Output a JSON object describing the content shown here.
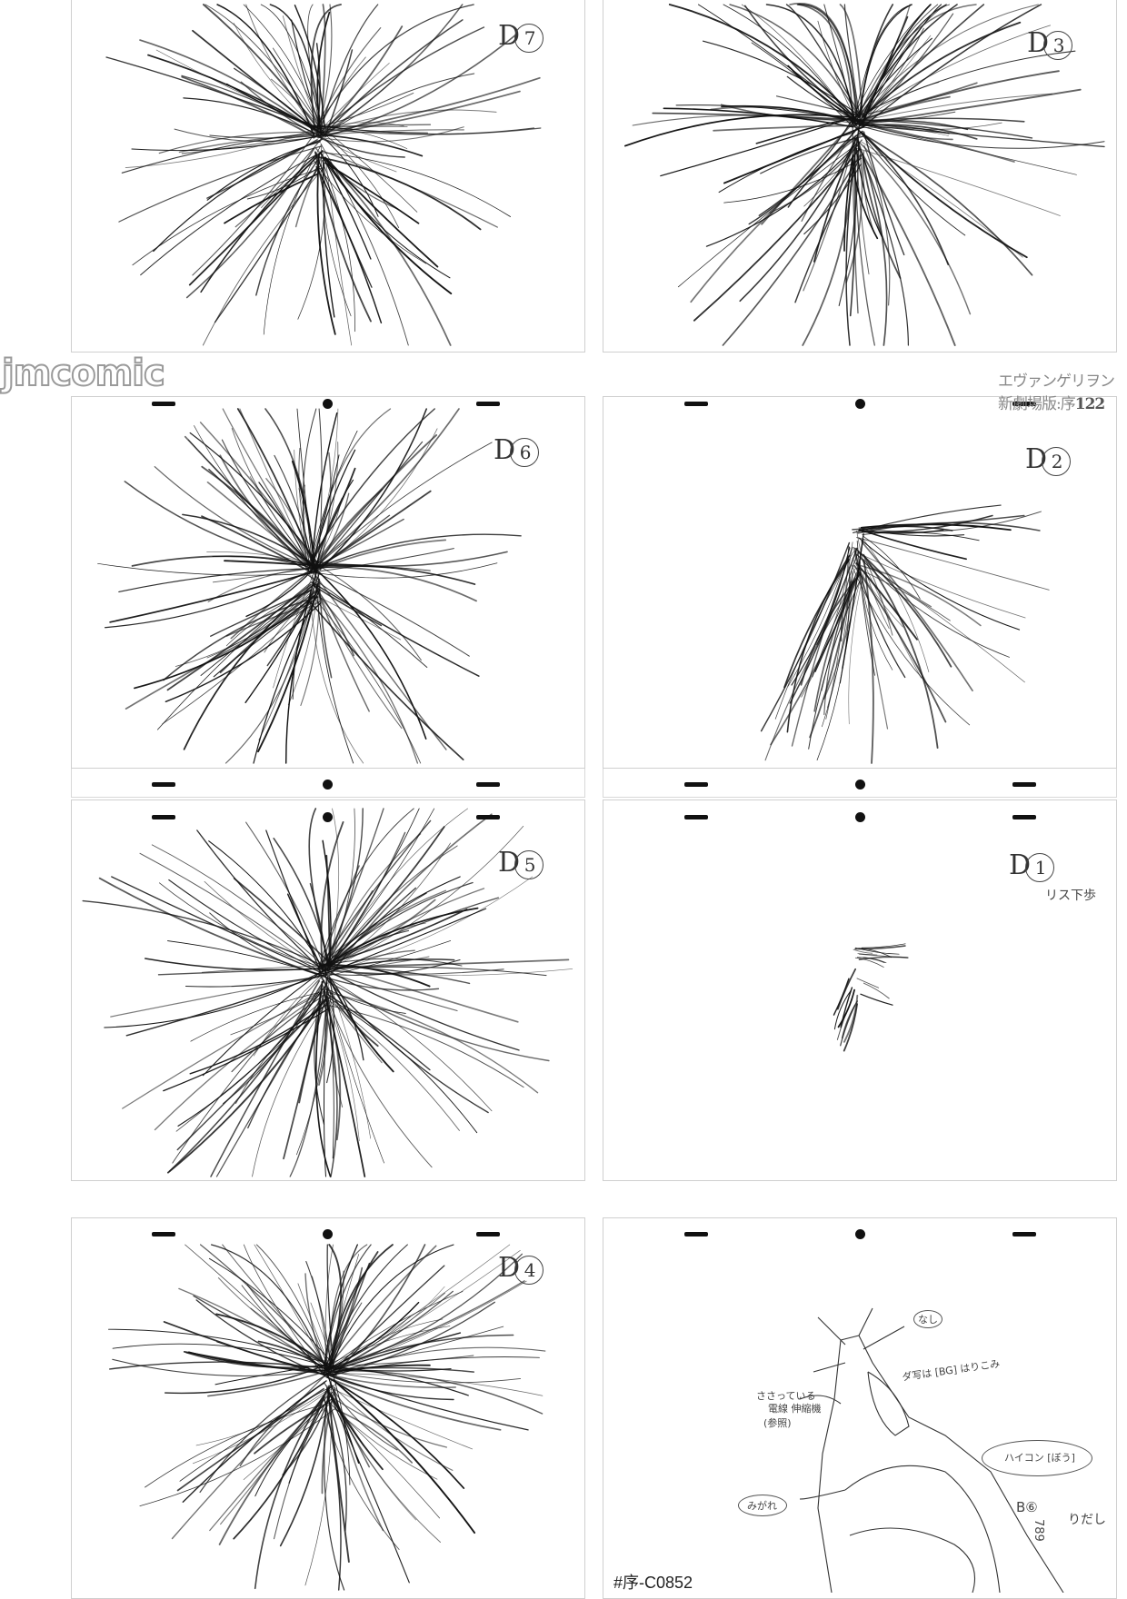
{
  "watermark": "jmcomic",
  "book_title": "エヴァンゲリヲン新劇場版:序",
  "page_number": "122",
  "cut_code": "#序-C0852",
  "sheets": [
    {
      "id": "left-1",
      "label": "D",
      "num": "7"
    },
    {
      "id": "right-1",
      "label": "D",
      "num": "3"
    },
    {
      "id": "left-2",
      "label": "D",
      "num": "6"
    },
    {
      "id": "right-2",
      "label": "D",
      "num": "2"
    },
    {
      "id": "left-3",
      "label": "D",
      "num": "5"
    },
    {
      "id": "right-3",
      "label": "D",
      "num": "1",
      "note": "リス下歩"
    },
    {
      "id": "left-4",
      "label": "D",
      "num": "4"
    },
    {
      "id": "right-4",
      "label": "",
      "num": ""
    }
  ],
  "sketch_notes": {
    "top_circle": "なし",
    "left_note_1": "ささっている",
    "left_note_2": "電線 伸縮機",
    "left_note_3": "(参照)",
    "right_note": "ダ写は [BG] はりこみ",
    "oval_right": "ハイコン [ぼう]",
    "oval_left": "みがれ",
    "bg_label": "B⑥",
    "bg_seq": "789",
    "bg_side": "りだし"
  },
  "colors": {
    "ink": "#111111",
    "border": "#cfcfcf"
  }
}
